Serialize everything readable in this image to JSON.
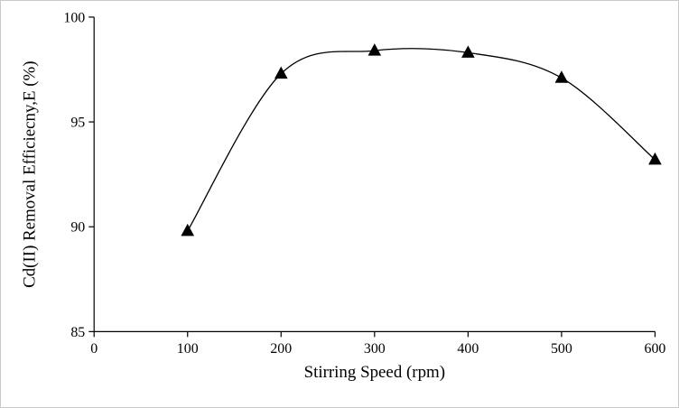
{
  "figure": {
    "background": "#ffffff",
    "border_color": "#c9c9c9"
  },
  "chart_data": {
    "type": "line",
    "title": "",
    "xlabel": "Stirring Speed (rpm)",
    "ylabel": "Cd(II) Removal Efficiecny,E (%)",
    "x": [
      100,
      200,
      300,
      400,
      500,
      600
    ],
    "series": [
      {
        "name": "Cd(II) removal efficiency",
        "values": [
          89.8,
          97.3,
          98.4,
          98.3,
          97.1,
          93.2
        ]
      }
    ],
    "xlim": [
      0,
      600
    ],
    "ylim": [
      85,
      100
    ],
    "xticks": [
      0,
      100,
      200,
      300,
      400,
      500,
      600
    ],
    "yticks": [
      85,
      90,
      95,
      100
    ],
    "grid": false,
    "legend": "none",
    "line_color": "#000000",
    "marker": "triangle-filled",
    "marker_color": "#000000",
    "smooth": true
  }
}
